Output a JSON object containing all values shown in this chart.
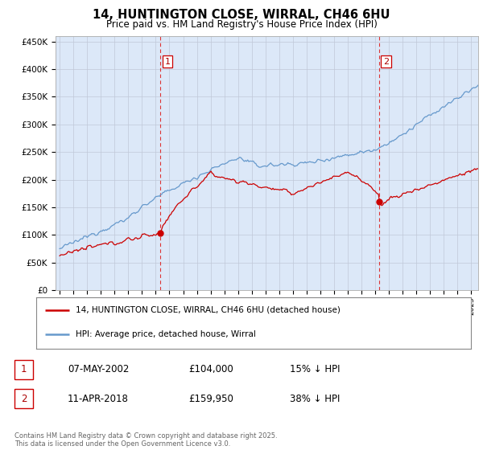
{
  "title_line1": "14, HUNTINGTON CLOSE, WIRRAL, CH46 6HU",
  "title_line2": "Price paid vs. HM Land Registry's House Price Index (HPI)",
  "ylabel_ticks": [
    "£0",
    "£50K",
    "£100K",
    "£150K",
    "£200K",
    "£250K",
    "£300K",
    "£350K",
    "£400K",
    "£450K"
  ],
  "ytick_values": [
    0,
    50000,
    100000,
    150000,
    200000,
    250000,
    300000,
    350000,
    400000,
    450000
  ],
  "ylim": [
    0,
    460000
  ],
  "xlim_start": 1994.7,
  "xlim_end": 2025.5,
  "hpi_color": "#6699cc",
  "price_color": "#cc0000",
  "marker1_x": 2002.35,
  "marker1_y": 104000,
  "marker2_x": 2018.28,
  "marker2_y": 159950,
  "vline1_x": 2002.35,
  "vline2_x": 2018.28,
  "legend_label1": "14, HUNTINGTON CLOSE, WIRRAL, CH46 6HU (detached house)",
  "legend_label2": "HPI: Average price, detached house, Wirral",
  "table_row1": [
    "1",
    "07-MAY-2002",
    "£104,000",
    "15% ↓ HPI"
  ],
  "table_row2": [
    "2",
    "11-APR-2018",
    "£159,950",
    "38% ↓ HPI"
  ],
  "footnote": "Contains HM Land Registry data © Crown copyright and database right 2025.\nThis data is licensed under the Open Government Licence v3.0.",
  "background_color": "#dce8f8",
  "grid_color": "#c0c8d8",
  "fig_bg": "#ffffff"
}
